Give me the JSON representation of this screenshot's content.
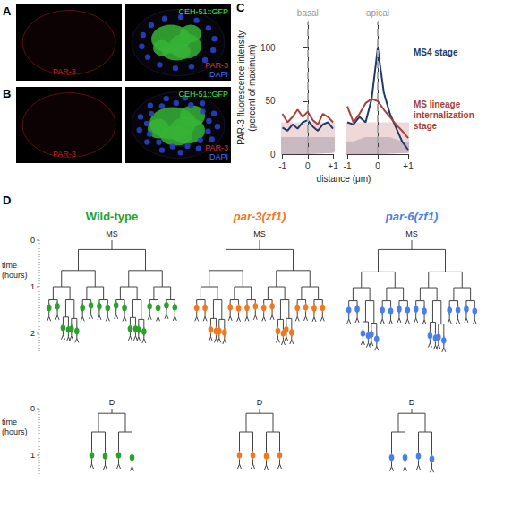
{
  "images": [
    {
      "panel": "A",
      "left_label": {
        "text": "PAR-3",
        "color": "#c82020"
      },
      "right_labels": [
        {
          "text": "CEH-51::GFP",
          "color": "#40e040"
        },
        {
          "text": "PAR-3",
          "color": "#e03030"
        },
        {
          "text": "DAPI",
          "color": "#4a6cff"
        }
      ]
    },
    {
      "panel": "B",
      "left_label": {
        "text": "PAR-3",
        "color": "#c82020"
      },
      "right_labels": [
        {
          "text": "CEH-51::GFP",
          "color": "#40e040"
        },
        {
          "text": "PAR-3",
          "color": "#e03030"
        },
        {
          "text": "DAPI",
          "color": "#4a6cff"
        }
      ]
    }
  ],
  "chart_data": [
    {
      "type": "line",
      "panel_label": "C",
      "ylabel": "PAR-3 fluorescence intensity (percent of maximum)",
      "xlabel": "distance (μm)",
      "annotations": [
        {
          "x": 0,
          "text": "basal"
        }
      ],
      "x": [
        -1,
        -0.8,
        -0.6,
        -0.4,
        -0.2,
        0,
        0.2,
        0.4,
        0.6,
        0.8,
        1
      ],
      "xlim": [
        -1,
        1
      ],
      "xticks": [
        -1,
        0,
        {
          "value": 1,
          "label": "+1"
        }
      ],
      "ylim": [
        0,
        125
      ],
      "yticks": [
        0,
        50,
        100
      ],
      "series": [
        {
          "name": "MS4 stage",
          "color": "#1f3a6b",
          "values": [
            25,
            22,
            28,
            24,
            30,
            32,
            26,
            22,
            28,
            30,
            24
          ],
          "error": [
            8,
            8,
            8,
            8,
            8,
            8,
            8,
            8,
            8,
            8,
            8
          ]
        },
        {
          "name": "MS lineage internalization stage",
          "color": "#a8413e",
          "values": [
            38,
            30,
            35,
            42,
            35,
            40,
            32,
            28,
            38,
            35,
            30
          ],
          "error": [
            15,
            15,
            15,
            15,
            15,
            15,
            15,
            15,
            15,
            15,
            15
          ]
        }
      ]
    },
    {
      "type": "line",
      "annotations": [
        {
          "x": 0,
          "text": "apical"
        }
      ],
      "x": [
        -1,
        -0.8,
        -0.6,
        -0.4,
        -0.2,
        0,
        0.2,
        0.4,
        0.6,
        0.8,
        1
      ],
      "xlim": [
        -1,
        1
      ],
      "xticks": [
        -1,
        0,
        {
          "value": 1,
          "label": "+1"
        }
      ],
      "series": [
        {
          "name": "MS4 stage",
          "color": "#1f3a6b",
          "values": [
            30,
            28,
            35,
            30,
            52,
            100,
            58,
            38,
            25,
            12,
            4
          ],
          "error": [
            6,
            6,
            6,
            6,
            8,
            8,
            8,
            6,
            5,
            4,
            3
          ]
        },
        {
          "name": "MS lineage internalization stage",
          "color": "#a8413e",
          "values": [
            45,
            30,
            38,
            48,
            52,
            50,
            42,
            35,
            28,
            22,
            15
          ],
          "error": [
            15,
            15,
            15,
            15,
            15,
            15,
            15,
            15,
            15,
            15,
            15
          ]
        }
      ]
    }
  ],
  "lineages": {
    "panel": "D",
    "time_axes": [
      {
        "root": "MS",
        "label": "time (hours)",
        "tlim": [
          0,
          2.4
        ],
        "ticks": [
          0,
          1,
          2
        ]
      },
      {
        "root": "D",
        "label": "time (hours)",
        "tlim": [
          0,
          1.4
        ],
        "ticks": [
          0,
          1
        ]
      }
    ],
    "genotypes": [
      {
        "name": "Wild-type",
        "color": "#2ca02c",
        "trees": [
          {
            "root": "MS",
            "levels": [
              0.2,
              0.65,
              1.0,
              1.28
            ],
            "leaves": [
              1.45,
              1.42,
              {
                "split": 1.65,
                "dots": [
                  1.88,
                  1.92
                ]
              },
              {
                "split": 1.68,
                "dots": [
                  1.9,
                  1.95
                ]
              },
              1.45,
              1.4,
              1.42,
              1.45,
              1.4,
              1.45,
              {
                "split": 1.66,
                "dots": [
                  1.9,
                  1.9
                ]
              },
              {
                "split": 1.7,
                "dots": [
                  1.92,
                  1.96
                ]
              },
              1.42,
              1.45,
              1.4,
              1.44
            ]
          },
          {
            "root": "D",
            "levels": [
              0.1,
              0.5
            ],
            "leaves": [
              1.0,
              1.02,
              1.0,
              1.05
            ]
          }
        ]
      },
      {
        "name": "par-3(zf1)",
        "color": "#f07820",
        "trees": [
          {
            "root": "MS",
            "levels": [
              0.2,
              0.65,
              1.0,
              1.28
            ],
            "leaves": [
              1.45,
              1.45,
              {
                "split": 1.68,
                "dots": [
                  1.92,
                  1.95
                ]
              },
              {
                "split": 1.7,
                "dots": [
                  1.95,
                  1.98
                ]
              },
              1.44,
              1.46,
              1.45,
              1.42,
              1.45,
              1.42,
              {
                "split": 1.7,
                "dots": [
                  1.95,
                  2.0
                ]
              },
              {
                "split": 1.68,
                "dots": [
                  1.92,
                  1.98
                ]
              },
              1.45,
              1.44,
              1.46,
              1.45
            ]
          },
          {
            "root": "D",
            "levels": [
              0.1,
              0.5
            ],
            "leaves": [
              1.0,
              1.0,
              1.02,
              1.0
            ]
          }
        ]
      },
      {
        "name": "par-6(zf1)",
        "color": "#4a7ee8",
        "trees": [
          {
            "root": "MS",
            "levels": [
              0.2,
              0.68,
              1.02,
              1.3
            ],
            "leaves": [
              1.5,
              1.48,
              {
                "split": 1.75,
                "dots": [
                  2.0,
                  2.05
                ]
              },
              {
                "split": 1.78,
                "dots": [
                  2.02,
                  2.12
                ]
              },
              1.5,
              1.52,
              1.48,
              1.5,
              1.48,
              1.52,
              {
                "split": 1.76,
                "dots": [
                  2.05,
                  2.1
                ]
              },
              {
                "split": 1.8,
                "dots": [
                  2.08,
                  2.15
                ]
              },
              1.5,
              1.5,
              1.48,
              1.52
            ]
          },
          {
            "root": "D",
            "levels": [
              0.1,
              0.5
            ],
            "leaves": [
              1.05,
              1.05,
              1.02,
              1.08
            ]
          }
        ]
      }
    ]
  }
}
